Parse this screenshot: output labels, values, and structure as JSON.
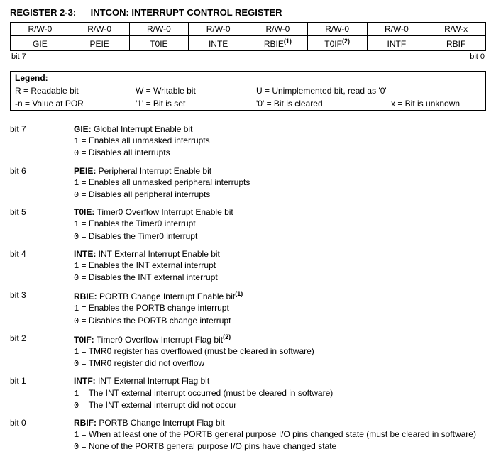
{
  "title_prefix": "REGISTER 2-3:",
  "title_name": "INTCON: INTERRUPT CONTROL REGISTER",
  "bit_rw": [
    "R/W-0",
    "R/W-0",
    "R/W-0",
    "R/W-0",
    "R/W-0",
    "R/W-0",
    "R/W-0",
    "R/W-x"
  ],
  "bit_name": [
    "GIE",
    "PEIE",
    "T0IE",
    "INTE",
    "RBIE",
    "T0IF",
    "INTF",
    "RBIF"
  ],
  "bit_sup": [
    "",
    "",
    "",
    "",
    "(1)",
    "(2)",
    "",
    ""
  ],
  "range_hi": "bit 7",
  "range_lo": "bit 0",
  "legend": {
    "header": "Legend:",
    "r1c1": "R = Readable bit",
    "r1c2": "W = Writable bit",
    "r1c3": "U = Unimplemented bit, read as '0'",
    "r2c1": "-n = Value at POR",
    "r2c2": "'1' = Bit is set",
    "r2c3": "'0' = Bit is cleared",
    "r2c4": "x = Bit is unknown"
  },
  "bits": [
    {
      "label": "bit 7",
      "name": "GIE:",
      "desc": " Global Interrupt Enable bit",
      "sup": "",
      "v1": "Enables all unmasked interrupts",
      "v0": "Disables all interrupts"
    },
    {
      "label": "bit 6",
      "name": "PEIE:",
      "desc": " Peripheral Interrupt Enable bit",
      "sup": "",
      "v1": "Enables all unmasked peripheral interrupts",
      "v0": "Disables all peripheral interrupts"
    },
    {
      "label": "bit 5",
      "name": "T0IE:",
      "desc": " Timer0 Overflow Interrupt Enable bit",
      "sup": "",
      "v1": "Enables the Timer0 interrupt",
      "v0": "Disables the Timer0 interrupt"
    },
    {
      "label": "bit 4",
      "name": "INTE:",
      "desc": " INT External Interrupt Enable bit",
      "sup": "",
      "v1": "Enables the INT external interrupt",
      "v0": "Disables the INT external interrupt"
    },
    {
      "label": "bit 3",
      "name": "RBIE:",
      "desc": " PORTB Change Interrupt Enable bit",
      "sup": "(1)",
      "v1": "Enables the PORTB change interrupt",
      "v0": "Disables the PORTB change interrupt"
    },
    {
      "label": "bit 2",
      "name": "T0IF:",
      "desc": " Timer0 Overflow Interrupt Flag bit",
      "sup": "(2)",
      "v1": "TMR0 register has overflowed (must be cleared in software)",
      "v0": "TMR0 register did not overflow"
    },
    {
      "label": "bit 1",
      "name": "INTF:",
      "desc": " INT External Interrupt Flag bit",
      "sup": "",
      "v1": "The INT external interrupt occurred (must be cleared in software)",
      "v0": "The INT external interrupt did not occur"
    },
    {
      "label": "bit 0",
      "name": "RBIF:",
      "desc": " PORTB Change Interrupt Flag bit",
      "sup": "",
      "v1": "When at least one of the PORTB general purpose I/O pins changed state (must be cleared in software)",
      "v0": "None of the PORTB general purpose I/O pins have changed state"
    }
  ]
}
